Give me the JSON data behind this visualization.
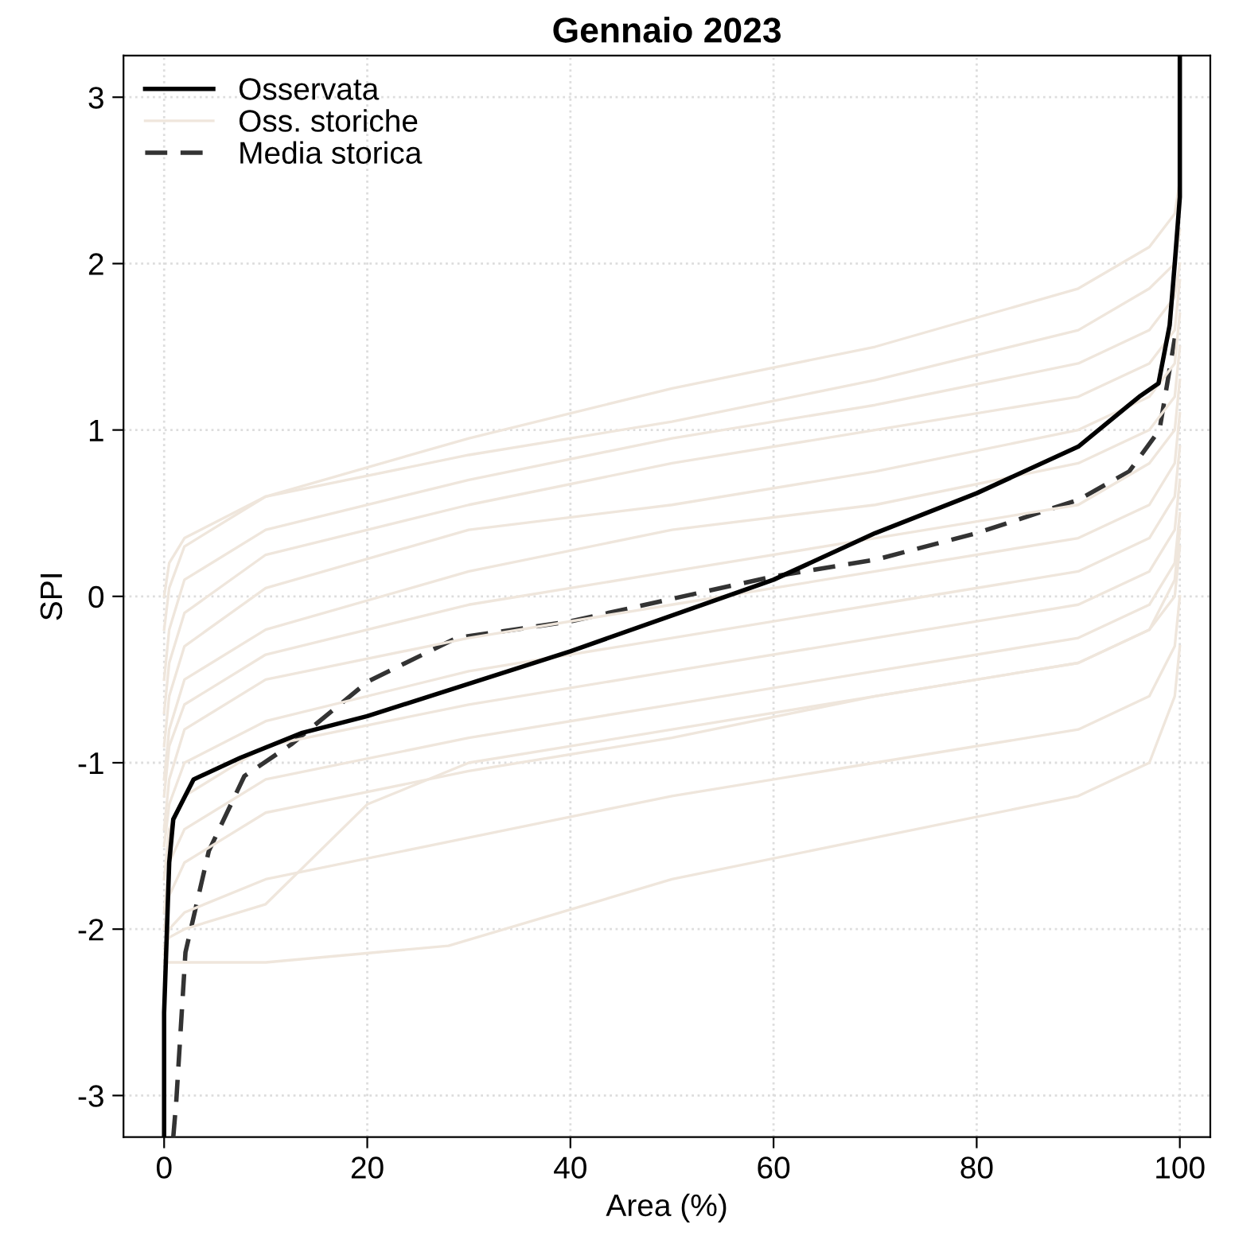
{
  "chart_data": {
    "type": "line",
    "title": "Gennaio 2023",
    "xlabel": "Area (%)",
    "ylabel": "SPI",
    "xlim": [
      -4,
      103
    ],
    "ylim": [
      -3.25,
      3.25
    ],
    "xticks": [
      0,
      20,
      40,
      60,
      80,
      100
    ],
    "yticks": [
      -3,
      -2,
      -1,
      0,
      1,
      2,
      3
    ],
    "grid": true,
    "legend": "top left",
    "series": [
      {
        "name": "Osservata",
        "color": "#000000",
        "line_style": "solid",
        "x": [
          0,
          0,
          0.5,
          0.9,
          2.9,
          7.5,
          13.6,
          20,
          40,
          60,
          70,
          80,
          90,
          96,
          97.9,
          99,
          99.5,
          100,
          100
        ],
        "values": [
          -3.25,
          -2.5,
          -1.6,
          -1.34,
          -1.1,
          -0.97,
          -0.82,
          -0.72,
          -0.33,
          0.1,
          0.38,
          0.62,
          0.9,
          1.2,
          1.28,
          1.63,
          2.0,
          2.4,
          3.25
        ]
      },
      {
        "name": "Oss. storiche",
        "color": "#efe6dc",
        "line_style": "solid",
        "x": [
          0,
          0.5,
          2,
          10,
          30,
          50,
          70,
          90,
          97,
          99.5,
          100
        ],
        "values": [
          0.0,
          0.2,
          0.35,
          0.6,
          0.95,
          1.25,
          1.5,
          1.85,
          2.1,
          2.3,
          2.5
        ]
      },
      {
        "color": "#efe6dc",
        "line_style": "solid",
        "x": [
          0,
          0.5,
          2,
          10,
          30,
          50,
          70,
          90,
          97,
          99.5,
          100
        ],
        "values": [
          -0.2,
          0.05,
          0.3,
          0.6,
          0.85,
          1.05,
          1.3,
          1.6,
          1.85,
          2.0,
          2.2
        ]
      },
      {
        "color": "#efe6dc",
        "line_style": "solid",
        "x": [
          0,
          0.5,
          2,
          10,
          30,
          50,
          70,
          90,
          97,
          99.5,
          100
        ],
        "values": [
          -0.5,
          -0.2,
          0.1,
          0.4,
          0.7,
          0.95,
          1.15,
          1.4,
          1.6,
          1.8,
          2.0
        ]
      },
      {
        "color": "#efe6dc",
        "line_style": "solid",
        "x": [
          0,
          0.5,
          2,
          10,
          30,
          50,
          70,
          90,
          97,
          99.5,
          100
        ],
        "values": [
          -0.7,
          -0.4,
          -0.1,
          0.25,
          0.55,
          0.8,
          1.0,
          1.2,
          1.4,
          1.6,
          1.9
        ]
      },
      {
        "color": "#efe6dc",
        "line_style": "solid",
        "x": [
          0,
          0.5,
          2,
          10,
          30,
          50,
          70,
          90,
          97,
          99.5,
          100
        ],
        "values": [
          -0.9,
          -0.6,
          -0.3,
          0.05,
          0.4,
          0.55,
          0.75,
          1.0,
          1.2,
          1.4,
          1.7
        ]
      },
      {
        "color": "#efe6dc",
        "line_style": "solid",
        "x": [
          0,
          0.5,
          2,
          10,
          30,
          50,
          70,
          90,
          97,
          99.5,
          100
        ],
        "values": [
          -1.1,
          -0.8,
          -0.5,
          -0.2,
          0.15,
          0.4,
          0.55,
          0.8,
          1.0,
          1.2,
          1.5
        ]
      },
      {
        "color": "#efe6dc",
        "line_style": "solid",
        "x": [
          0,
          0.5,
          2,
          10,
          30,
          50,
          70,
          90,
          97,
          99.5,
          100
        ],
        "values": [
          -1.2,
          -0.9,
          -0.65,
          -0.35,
          -0.05,
          0.15,
          0.35,
          0.55,
          0.8,
          1.0,
          1.3
        ]
      },
      {
        "color": "#efe6dc",
        "line_style": "solid",
        "x": [
          0,
          0.5,
          2,
          10,
          30,
          50,
          70,
          90,
          97,
          99.5,
          100
        ],
        "values": [
          -1.4,
          -1.1,
          -0.8,
          -0.5,
          -0.25,
          -0.05,
          0.15,
          0.35,
          0.55,
          0.8,
          1.1
        ]
      },
      {
        "color": "#efe6dc",
        "line_style": "solid",
        "x": [
          0,
          0.5,
          2,
          10,
          30,
          50,
          70,
          90,
          97,
          99.5,
          100
        ],
        "values": [
          -1.5,
          -1.25,
          -1.0,
          -0.75,
          -0.45,
          -0.25,
          -0.05,
          0.15,
          0.35,
          0.6,
          0.9
        ]
      },
      {
        "color": "#efe6dc",
        "line_style": "solid",
        "x": [
          0,
          0.5,
          2,
          10,
          30,
          50,
          70,
          90,
          97,
          99.5,
          100
        ],
        "values": [
          -1.7,
          -1.4,
          -1.2,
          -0.9,
          -0.65,
          -0.45,
          -0.25,
          -0.05,
          0.15,
          0.4,
          0.7
        ]
      },
      {
        "color": "#efe6dc",
        "line_style": "solid",
        "x": [
          0,
          0.5,
          2,
          10,
          30,
          50,
          70,
          90,
          97,
          99.5,
          100
        ],
        "values": [
          -1.9,
          -1.6,
          -1.4,
          -1.1,
          -0.85,
          -0.65,
          -0.45,
          -0.25,
          -0.05,
          0.2,
          0.5
        ]
      },
      {
        "color": "#efe6dc",
        "line_style": "solid",
        "x": [
          0,
          0.5,
          2,
          10,
          30,
          50,
          70,
          90,
          97,
          99.5,
          100
        ],
        "values": [
          -2.0,
          -1.8,
          -1.6,
          -1.3,
          -1.05,
          -0.85,
          -0.6,
          -0.4,
          -0.2,
          0.0,
          0.3
        ]
      },
      {
        "color": "#efe6dc",
        "line_style": "solid",
        "x": [
          0,
          0.5,
          2,
          10,
          30,
          50,
          70,
          90,
          97,
          99.5,
          100
        ],
        "values": [
          -2.15,
          -2.0,
          -1.9,
          -1.7,
          -1.45,
          -1.2,
          -1.0,
          -0.8,
          -0.6,
          -0.3,
          0.0
        ]
      },
      {
        "color": "#efe6dc",
        "line_style": "solid",
        "x": [
          0,
          0.5,
          2,
          10,
          28,
          50,
          70,
          90,
          97,
          99.5,
          100
        ],
        "values": [
          -2.2,
          -2.2,
          -2.2,
          -2.2,
          -2.1,
          -1.7,
          -1.45,
          -1.2,
          -1.0,
          -0.6,
          -0.3
        ]
      },
      {
        "color": "#efe6dc",
        "line_style": "solid",
        "x": [
          0,
          0.5,
          2,
          10,
          20,
          30,
          50,
          70,
          90,
          97,
          99.5,
          100
        ],
        "values": [
          -2.1,
          -2.05,
          -2.0,
          -1.85,
          -1.25,
          -1.0,
          -0.8,
          -0.6,
          -0.4,
          -0.2,
          0.1,
          0.4
        ]
      },
      {
        "name": "Media storica",
        "color": "#333333",
        "line_style": "dashed",
        "x": [
          0.9,
          1.2,
          2.1,
          4.4,
          7.9,
          12.5,
          20.1,
          28.8,
          40,
          60,
          70,
          80,
          90,
          95,
          98,
          99.5
        ],
        "values": [
          -3.25,
          -3.03,
          -2.14,
          -1.53,
          -1.08,
          -0.89,
          -0.51,
          -0.25,
          -0.15,
          0.12,
          0.22,
          0.38,
          0.58,
          0.75,
          1.0,
          1.55
        ]
      }
    ]
  }
}
